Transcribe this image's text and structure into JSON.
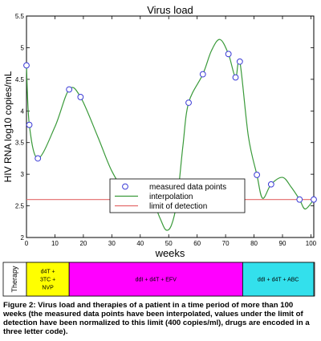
{
  "chart_data": {
    "type": "line",
    "title": "Virus load",
    "xlabel": "weeks",
    "ylabel": "HIV RNA log10 copies/mL",
    "xlim": [
      0,
      101
    ],
    "ylim": [
      2,
      5.5
    ],
    "xticks": [
      "0",
      "10",
      "20",
      "30",
      "40",
      "50",
      "60",
      "70",
      "80",
      "90",
      "100"
    ],
    "yticks": [
      "2",
      "2.5",
      "3",
      "3.5",
      "4",
      "4.5",
      "5",
      "5.5"
    ],
    "grid": false,
    "legend_position": "lower-center",
    "series": [
      {
        "name": "measured data points",
        "style": "markers",
        "color": "#3b3bd6",
        "x": [
          0,
          1,
          4,
          15,
          19,
          41,
          44,
          53,
          57,
          62,
          71,
          73.5,
          75,
          81,
          86,
          96,
          101
        ],
        "y": [
          4.72,
          3.78,
          3.25,
          4.34,
          4.22,
          2.6,
          2.6,
          2.6,
          4.13,
          4.58,
          4.9,
          4.53,
          4.78,
          2.99,
          2.84,
          2.6,
          2.6
        ]
      },
      {
        "name": "interpolation",
        "style": "line",
        "color": "#3a9a3a",
        "x": [
          0,
          1,
          4,
          10,
          15,
          19,
          25,
          30,
          35,
          41,
          44,
          47,
          49,
          51,
          53,
          55,
          57,
          62,
          65,
          68,
          71,
          73.5,
          75,
          78,
          81,
          83,
          86,
          90,
          93,
          96,
          98,
          101
        ],
        "y": [
          4.72,
          3.78,
          3.25,
          3.75,
          4.34,
          4.22,
          3.6,
          3.05,
          2.72,
          2.6,
          2.6,
          2.3,
          2.12,
          2.2,
          2.6,
          3.45,
          4.13,
          4.58,
          4.95,
          5.13,
          4.9,
          4.53,
          4.78,
          3.6,
          2.99,
          2.62,
          2.84,
          2.95,
          2.8,
          2.6,
          2.45,
          2.6
        ]
      },
      {
        "name": "limit of detection",
        "style": "line",
        "color": "#e36a6a",
        "x": [
          0,
          101
        ],
        "y": [
          2.6,
          2.6
        ]
      }
    ]
  },
  "therapy": {
    "label": "Therapy",
    "segments": [
      {
        "start": 0,
        "end": 15,
        "color": "#ffff00",
        "lines": [
          "d4T +",
          "3TC +",
          "NVP"
        ]
      },
      {
        "start": 15,
        "end": 76,
        "color": "#ff00ff",
        "lines": [
          "ddI + d4T + EFV"
        ]
      },
      {
        "start": 76,
        "end": 101,
        "color": "#33e0ec",
        "lines": [
          "ddI + d4T + ABC"
        ]
      }
    ]
  },
  "caption": "Figure 2: Virus load and therapies of a patient in a time period of more than 100 weeks (the measured data points have been interpolated, values under the limit of detection have been normalized to this limit (400 copies/ml), drugs are encoded in a three letter code)."
}
